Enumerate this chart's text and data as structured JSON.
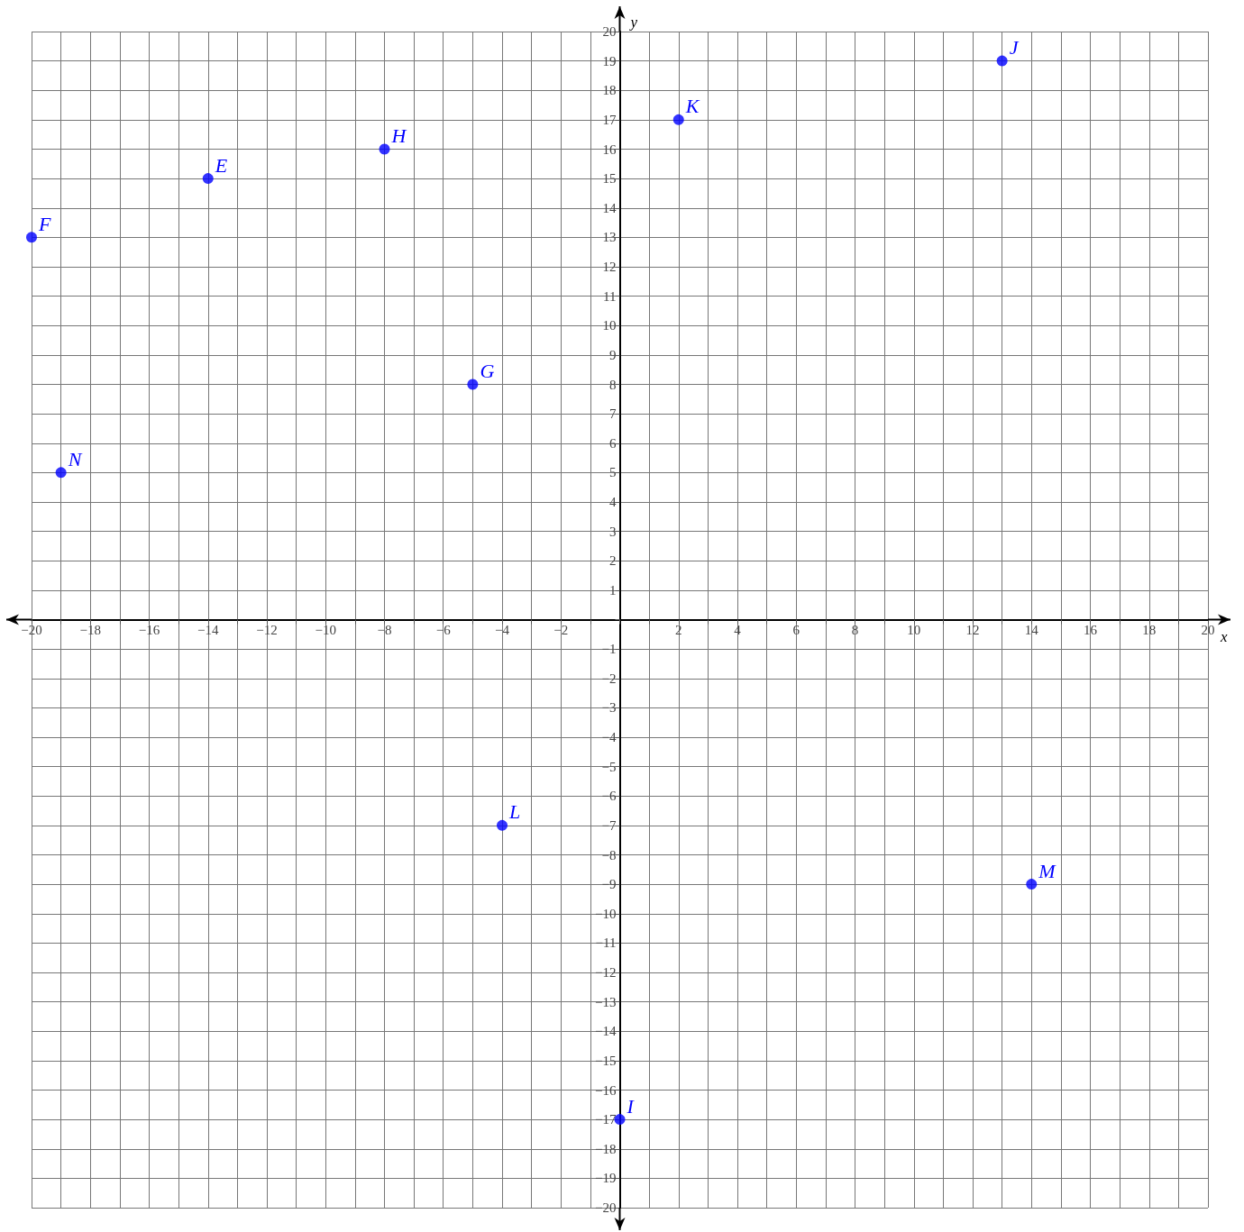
{
  "chart_data": {
    "type": "scatter",
    "xlabel": "x",
    "ylabel": "y",
    "marker": "circle",
    "grid": true,
    "x": [
      -20,
      -14,
      -8,
      -5,
      -19,
      2,
      13,
      -4,
      14,
      0
    ],
    "series": [
      {
        "color": "#0000ff",
        "values": [
          13,
          15,
          16,
          8,
          5,
          17,
          19,
          -7,
          -9,
          -17
        ]
      }
    ],
    "xlim": [
      -20,
      20
    ],
    "ylim": [
      -20,
      20
    ],
    "xticks": [
      -20,
      {
        "value": -19,
        "label": null
      },
      -18,
      {
        "value": -17,
        "label": null
      },
      -16,
      {
        "value": -15,
        "label": null
      },
      -14,
      {
        "value": -13,
        "label": null
      },
      -12,
      {
        "value": -11,
        "label": null
      },
      -10,
      {
        "value": -9,
        "label": null
      },
      -8,
      {
        "value": -7,
        "label": null
      },
      -6,
      {
        "value": -5,
        "label": null
      },
      -4,
      {
        "value": -3,
        "label": null
      },
      -2,
      {
        "value": -1,
        "label": null
      },
      {
        "value": 0,
        "label": null
      },
      {
        "value": 1,
        "label": null
      },
      2,
      {
        "value": 3,
        "label": null
      },
      4,
      {
        "value": 5,
        "label": null
      },
      6,
      {
        "value": 7,
        "label": null
      },
      8,
      {
        "value": 9,
        "label": null
      },
      10,
      {
        "value": 11,
        "label": null
      },
      12,
      {
        "value": 13,
        "label": null
      },
      14,
      {
        "value": 15,
        "label": null
      },
      16,
      {
        "value": 17,
        "label": null
      },
      18,
      {
        "value": 19,
        "label": null
      },
      20
    ],
    "yticks": [
      -20,
      -19,
      -18,
      -17,
      -16,
      -15,
      -14,
      -13,
      -12,
      -11,
      -10,
      -9,
      -8,
      -7,
      -6,
      -5,
      -4,
      -3,
      -2,
      -1,
      {
        "value": 0,
        "label": null
      },
      1,
      2,
      3,
      4,
      5,
      6,
      7,
      8,
      9,
      10,
      11,
      12,
      13,
      14,
      15,
      16,
      17,
      18,
      19,
      20
    ],
    "annotations": [
      {
        "text": "F",
        "x": -20,
        "y": 13
      },
      {
        "text": "E",
        "x": -14,
        "y": 15
      },
      {
        "text": "H",
        "x": -8,
        "y": 16
      },
      {
        "text": "G",
        "x": -5,
        "y": 8
      },
      {
        "text": "N",
        "x": -19,
        "y": 5
      },
      {
        "text": "K",
        "x": 2,
        "y": 17
      },
      {
        "text": "J",
        "x": 13,
        "y": 19
      },
      {
        "text": "L",
        "x": -4,
        "y": -7
      },
      {
        "text": "M",
        "x": 14,
        "y": -9
      },
      {
        "text": "I",
        "x": 0,
        "y": -17
      }
    ]
  }
}
